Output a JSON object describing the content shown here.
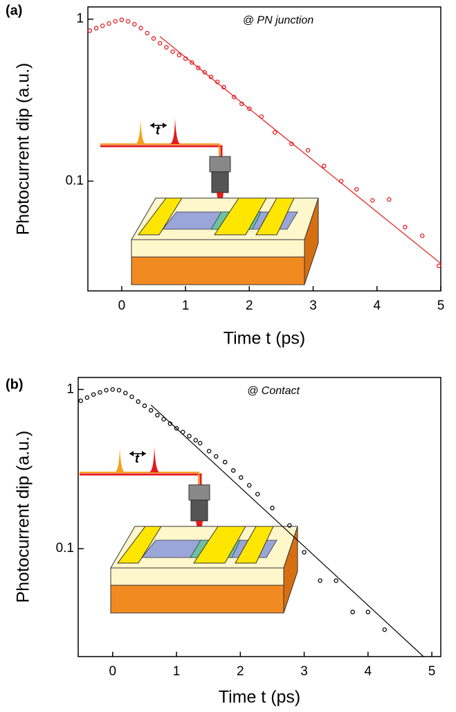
{
  "chart_data": [
    {
      "type": "scatter",
      "panel_label": "(a)",
      "annotation": "@ PN junction",
      "inset_text": "t",
      "xlabel": "Time t (ps)",
      "ylabel": "Photocurrent dip (a.u.)",
      "log_y": true,
      "xlim": [
        -0.53,
        5
      ],
      "ylim": [
        0.021,
        1.19
      ],
      "xticks": [
        0,
        1,
        2,
        3,
        4,
        5
      ],
      "yticks": [
        1,
        0.1
      ],
      "series": [
        {
          "type": "scatter",
          "color": "#e41a1c",
          "x": [
            -0.5,
            -0.4,
            -0.3,
            -0.2,
            -0.1,
            0,
            0.1,
            0.2,
            0.3,
            0.4,
            0.5,
            0.6,
            0.7,
            0.8,
            0.9,
            1.0,
            1.1,
            1.2,
            1.3,
            1.4,
            1.5,
            1.6,
            1.76,
            1.88,
            2.0,
            2.19,
            2.4,
            2.66,
            2.92,
            3.17,
            3.44,
            3.68,
            3.93,
            4.19,
            4.44,
            4.71,
            4.97
          ],
          "values": [
            0.85,
            0.88,
            0.91,
            0.94,
            0.97,
            0.99,
            0.97,
            0.93,
            0.88,
            0.82,
            0.76,
            0.71,
            0.67,
            0.63,
            0.6,
            0.57,
            0.54,
            0.5,
            0.47,
            0.44,
            0.41,
            0.38,
            0.33,
            0.3,
            0.28,
            0.25,
            0.2,
            0.17,
            0.155,
            0.124,
            0.1,
            0.089,
            0.076,
            0.077,
            0.052,
            0.046,
            0.03
          ]
        },
        {
          "type": "line",
          "color": "#e41a1c",
          "x": [
            0.6,
            5
          ],
          "values": [
            0.78,
            0.031
          ]
        }
      ]
    },
    {
      "type": "scatter",
      "panel_label": "(b)",
      "annotation": "@ Contact",
      "inset_text": "t",
      "xlabel": "Time t (ps)",
      "ylabel": "Photocurrent dip (a.u.)",
      "log_y": true,
      "xlim": [
        -0.54,
        5.14
      ],
      "ylim": [
        0.021,
        1.19
      ],
      "xticks": [
        0,
        1,
        2,
        3,
        4,
        5
      ],
      "yticks": [
        1,
        0.1
      ],
      "series": [
        {
          "type": "scatter",
          "color": "#000000",
          "x": [
            -0.5,
            -0.4,
            -0.3,
            -0.2,
            -0.1,
            0,
            0.1,
            0.2,
            0.3,
            0.4,
            0.5,
            0.6,
            0.7,
            0.8,
            0.9,
            1.0,
            1.1,
            1.2,
            1.3,
            1.37,
            1.51,
            1.62,
            1.76,
            1.89,
            2.01,
            2.14,
            2.27,
            2.5,
            2.77,
            3.0,
            3.25,
            3.5,
            3.76,
            4.0,
            4.26
          ],
          "values": [
            0.85,
            0.89,
            0.93,
            0.96,
            0.99,
            1.0,
            0.99,
            0.95,
            0.9,
            0.84,
            0.79,
            0.74,
            0.69,
            0.65,
            0.61,
            0.57,
            0.54,
            0.51,
            0.48,
            0.46,
            0.41,
            0.38,
            0.35,
            0.31,
            0.28,
            0.25,
            0.22,
            0.18,
            0.14,
            0.095,
            0.063,
            0.063,
            0.04,
            0.04,
            0.031
          ]
        },
        {
          "type": "line",
          "color": "#000000",
          "x": [
            0.6,
            4.87
          ],
          "values": [
            0.8,
            0.021
          ]
        }
      ]
    }
  ]
}
